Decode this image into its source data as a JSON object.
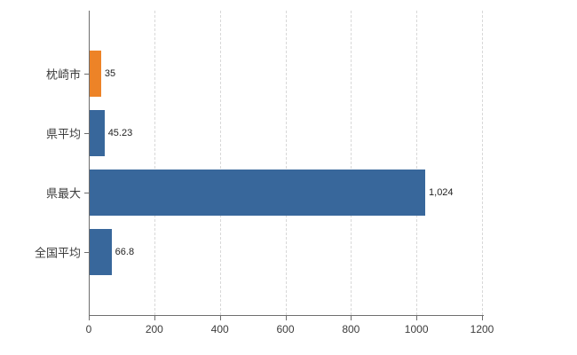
{
  "chart_data": {
    "type": "bar",
    "orientation": "horizontal",
    "title": "",
    "xlabel": "",
    "ylabel": "",
    "categories": [
      "枕崎市",
      "県平均",
      "県最大",
      "全国平均"
    ],
    "values": [
      35,
      45.23,
      1024,
      66.8
    ],
    "value_labels": [
      "35",
      "45.23",
      "1,024",
      "66.8"
    ],
    "bar_colors": [
      "#ED8327",
      "#38679B",
      "#38679B",
      "#38679B"
    ],
    "xlim": [
      0,
      1200
    ],
    "x_ticks": [
      0,
      200,
      400,
      600,
      800,
      1000,
      1200
    ],
    "x_tick_labels": [
      "0",
      "200",
      "400",
      "600",
      "800",
      "1000",
      "1200"
    ],
    "grid": "vertical-dashed",
    "legend": "none",
    "colors": {
      "axis": "#6e6e6e",
      "gridline": "#d8d8d8",
      "background": "#ffffff",
      "highlight_bar": "#ED8327",
      "default_bar": "#38679B"
    }
  }
}
